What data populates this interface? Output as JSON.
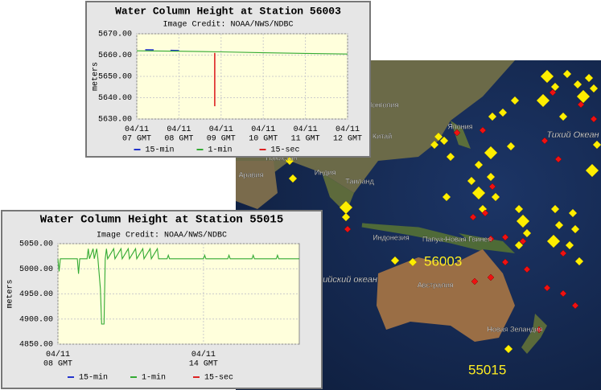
{
  "chart_data": [
    {
      "type": "line",
      "title": "Water Column Height at Station 56003",
      "subtitle": "Image Credit: NOAA/NWS/NDBC",
      "ylabel": "meters",
      "xlim": [
        7,
        12
      ],
      "xticks": [
        {
          "value": 7,
          "label": "04/11\n07 GMT"
        },
        {
          "value": 8,
          "label": "04/11\n08 GMT"
        },
        {
          "value": 9,
          "label": "04/11\n09 GMT"
        },
        {
          "value": 10,
          "label": "04/11\n10 GMT"
        },
        {
          "value": 11,
          "label": "04/11\n11 GMT"
        },
        {
          "value": 12,
          "label": "04/11\n12 GMT"
        }
      ],
      "ylim": [
        5630,
        5670
      ],
      "yticks": [
        {
          "value": 5630,
          "label": "5630.00"
        },
        {
          "value": 5640,
          "label": "5640.00"
        },
        {
          "value": 5650,
          "label": "5650.00"
        },
        {
          "value": 5660,
          "label": "5660.00"
        },
        {
          "value": 5670,
          "label": "5670.00"
        }
      ],
      "grid": true,
      "series": [
        {
          "name": "15-min",
          "color": "#2233cc",
          "x": [
            7.2,
            7.4,
            7.6,
            7.8,
            8.0
          ],
          "values": [
            5662.5,
            5662.4,
            null,
            5662.2,
            5662.1
          ]
        },
        {
          "name": "1-min",
          "color": "#33aa33",
          "x": [
            7,
            8,
            9,
            10,
            11,
            12
          ],
          "values": [
            5662,
            5661.8,
            5661.5,
            5661.1,
            5660.8,
            5660.5
          ]
        },
        {
          "name": "15-sec",
          "color": "#dd2222",
          "x": [
            8.85,
            8.85
          ],
          "values": [
            5661,
            5636
          ]
        }
      ]
    },
    {
      "type": "line",
      "title": "Water Column Height at Station 55015",
      "subtitle": "Image Credit: NOAA/NWS/NDBC",
      "ylabel": "meters",
      "xlim": [
        8,
        17.95
      ],
      "xticks": [
        {
          "value": 8,
          "label": "04/11\n08 GMT"
        },
        {
          "value": 14,
          "label": "04/11\n14 GMT"
        }
      ],
      "ylim": [
        4850,
        5050
      ],
      "yticks": [
        {
          "value": 4850,
          "label": "4850.00"
        },
        {
          "value": 4900,
          "label": "4900.00"
        },
        {
          "value": 4950,
          "label": "4950.00"
        },
        {
          "value": 5000,
          "label": "5000.00"
        },
        {
          "value": 5050,
          "label": "5050.00"
        }
      ],
      "grid": true,
      "series": [
        {
          "name": "15-min",
          "color": "#2233cc",
          "x": [],
          "values": []
        },
        {
          "name": "1-min",
          "color": "#33aa33",
          "x": [
            8.0,
            8.05,
            8.1,
            8.8,
            8.85,
            8.9,
            9.2,
            9.25,
            9.3,
            9.45,
            9.5,
            9.6,
            9.65,
            9.75,
            9.8,
            9.9,
            9.95,
            10.0,
            10.05,
            10.3,
            10.35,
            10.6,
            10.65,
            10.9,
            10.95,
            11.2,
            11.25,
            11.5,
            11.55,
            11.8,
            11.85,
            12.1,
            12.15,
            12.5,
            12.55,
            12.6,
            14.0,
            14.05,
            14.1,
            15.0,
            15.05,
            15.1,
            16.0,
            16.05,
            16.1,
            17.0,
            17.05,
            17.1,
            17.95
          ],
          "values": [
            5020,
            4995,
            5020,
            5020,
            4990,
            5020,
            5020,
            5040,
            5020,
            5040,
            5020,
            5040,
            5020,
            4960,
            4890,
            4890,
            5020,
            5040,
            5020,
            5040,
            5020,
            5040,
            5020,
            5040,
            5020,
            5040,
            5020,
            5040,
            5020,
            5040,
            5020,
            5040,
            5020,
            5020,
            5027,
            5020,
            5020,
            5027,
            5020,
            5020,
            5027,
            5020,
            5020,
            5027,
            5020,
            5020,
            5027,
            5020,
            5020
          ]
        },
        {
          "name": "15-sec",
          "color": "#dd2222",
          "x": [],
          "values": []
        }
      ]
    }
  ],
  "map": {
    "labels": [
      "Монголия",
      "Китай",
      "Япония",
      "Пакистан",
      "Аравия",
      "Индия",
      "Таиланд",
      "Индонезия",
      "Папуа-Новая Гвинея",
      "Австралия",
      "Новая Зеландия",
      "Тихий Океан",
      "дийский океан"
    ],
    "stations": [
      "56003",
      "55015"
    ]
  }
}
